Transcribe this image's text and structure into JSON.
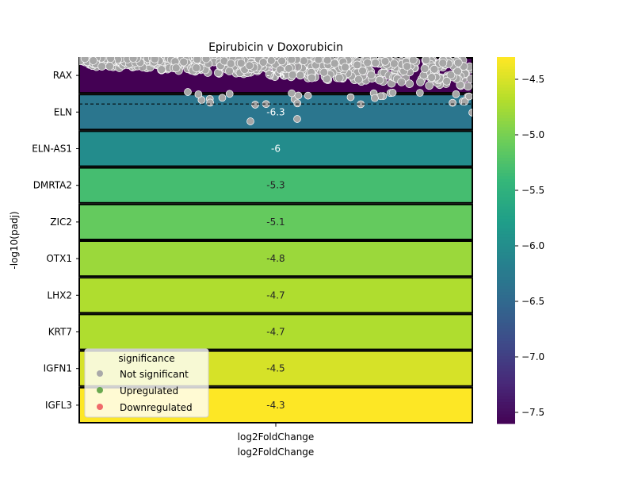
{
  "chart_data": {
    "type": "heatmap",
    "title": "Epirubicin v Doxorubicin",
    "xlabel": "log2FoldChange",
    "xlabel_secondary": "log2FoldChange",
    "ylabel": "-log10(padj)",
    "x_tick_label": "log2FoldChange",
    "rows": [
      "RAX",
      "ELN",
      "ELN-AS1",
      "DMRTA2",
      "ZIC2",
      "OTX1",
      "LHX2",
      "KRT7",
      "IGFN1",
      "IGFL3"
    ],
    "values": [
      -7.6,
      -6.3,
      -6.0,
      -5.3,
      -5.1,
      -4.8,
      -4.7,
      -4.7,
      -4.5,
      -4.3
    ],
    "annotations": [
      "-7.6",
      "-6.3",
      "-6",
      "-5.3",
      "-5.1",
      "-4.8",
      "-4.7",
      "-4.7",
      "-4.5",
      "-4.3"
    ],
    "colormap": "viridis",
    "colorbar": {
      "range": [
        -7.6,
        -4.3
      ],
      "ticks": [
        -7.5,
        -7.0,
        -6.5,
        -6.0,
        -5.5,
        -5.0,
        -4.5
      ],
      "tick_labels": [
        "−7.5",
        "−7.0",
        "−6.5",
        "−6.0",
        "−5.5",
        "−5.0",
        "−4.5"
      ]
    },
    "threshold_line": {
      "style": "dashed",
      "color": "#000000"
    },
    "legend": {
      "title": "significance",
      "placement": "lower-left",
      "entries": [
        {
          "label": "Not significant",
          "color": "#a9a9a9"
        },
        {
          "label": "Upregulated",
          "color": "#6aa84f"
        },
        {
          "label": "Downregulated",
          "color": "#f06a6a"
        }
      ]
    },
    "scatter_overlay": {
      "color": "#a6a6a6",
      "edge_color": "#ffffff",
      "series": "Not significant"
    }
  }
}
